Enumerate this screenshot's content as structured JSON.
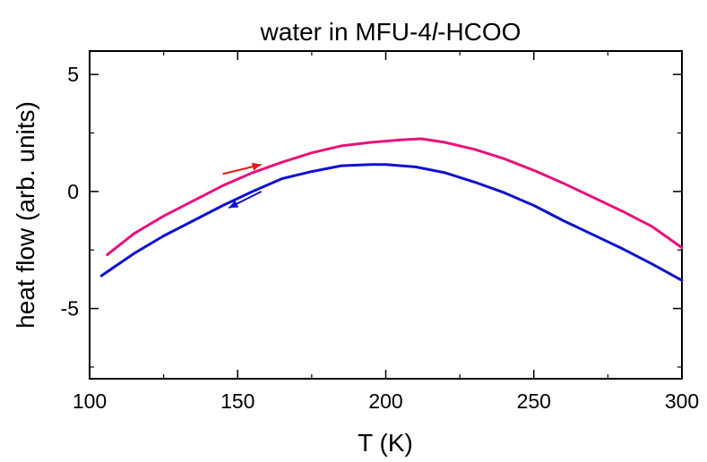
{
  "chart_data": {
    "type": "line",
    "title_prefix": "water in MFU-4",
    "title_italic": "l",
    "title_suffix": "-HCOO",
    "xlabel": "T (K)",
    "ylabel": "heat flow (arb. units)",
    "xlim": [
      100,
      300
    ],
    "ylim": [
      -8,
      6
    ],
    "xticks": [
      100,
      150,
      200,
      250,
      300
    ],
    "xtick_labels": [
      "100",
      "150",
      "200",
      "250",
      "300"
    ],
    "yticks": [
      5,
      0,
      -5
    ],
    "ytick_labels": [
      "5",
      "0",
      "-5"
    ],
    "grid": false,
    "series": [
      {
        "color": "#e8127a",
        "x": [
          106,
          115,
          125,
          135,
          145,
          155,
          165,
          175,
          185,
          195,
          205,
          212,
          220,
          230,
          240,
          250,
          260,
          270,
          280,
          290,
          300
        ],
        "y": [
          -2.7,
          -1.8,
          -1.05,
          -0.4,
          0.25,
          0.8,
          1.25,
          1.65,
          1.95,
          2.1,
          2.2,
          2.25,
          2.1,
          1.8,
          1.4,
          0.9,
          0.35,
          -0.25,
          -0.85,
          -1.5,
          -2.4
        ]
      },
      {
        "color": "#1010d0",
        "x": [
          104,
          115,
          125,
          135,
          145,
          155,
          165,
          175,
          185,
          195,
          200,
          210,
          220,
          230,
          240,
          250,
          260,
          270,
          280,
          290,
          300
        ],
        "y": [
          -3.6,
          -2.65,
          -1.9,
          -1.25,
          -0.6,
          0.0,
          0.55,
          0.85,
          1.1,
          1.15,
          1.15,
          1.05,
          0.8,
          0.4,
          -0.05,
          -0.6,
          -1.25,
          -1.85,
          -2.45,
          -3.1,
          -3.8
        ]
      }
    ],
    "annotations": [
      {
        "type": "arrow",
        "color": "#e01818",
        "from": [
          145,
          0.75
        ],
        "to": [
          158,
          1.15
        ]
      },
      {
        "type": "arrow",
        "color": "#1010d0",
        "from": [
          158,
          0.0
        ],
        "to": [
          147,
          -0.7
        ]
      }
    ]
  }
}
